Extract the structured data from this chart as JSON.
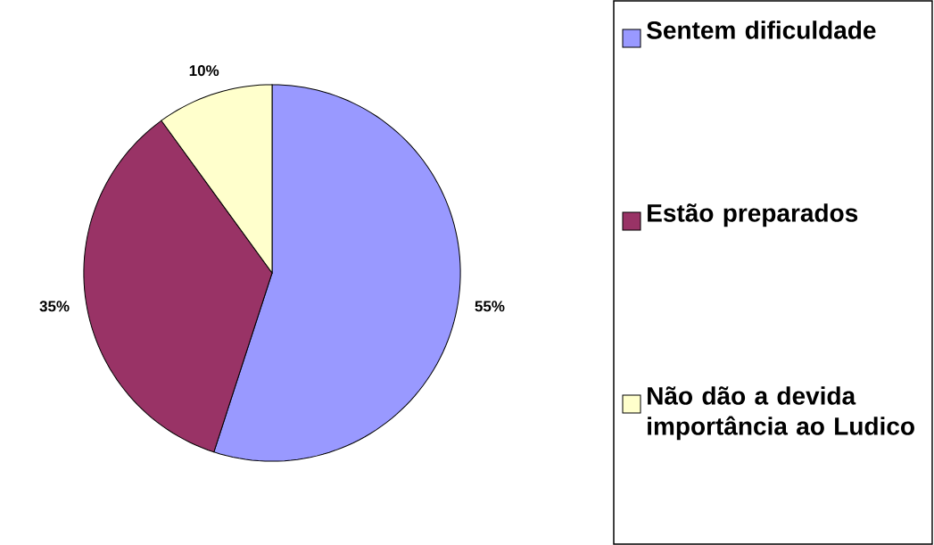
{
  "chart_data": {
    "type": "pie",
    "categories": [
      "Sentem dificuldade",
      "Estão preparados",
      "Não dão a devida importância ao Ludico"
    ],
    "values": [
      55,
      35,
      10
    ],
    "colors": [
      "#9999ff",
      "#993366",
      "#ffffcc"
    ],
    "value_labels": [
      "55%",
      "35%",
      "10%"
    ],
    "legend": "right"
  }
}
